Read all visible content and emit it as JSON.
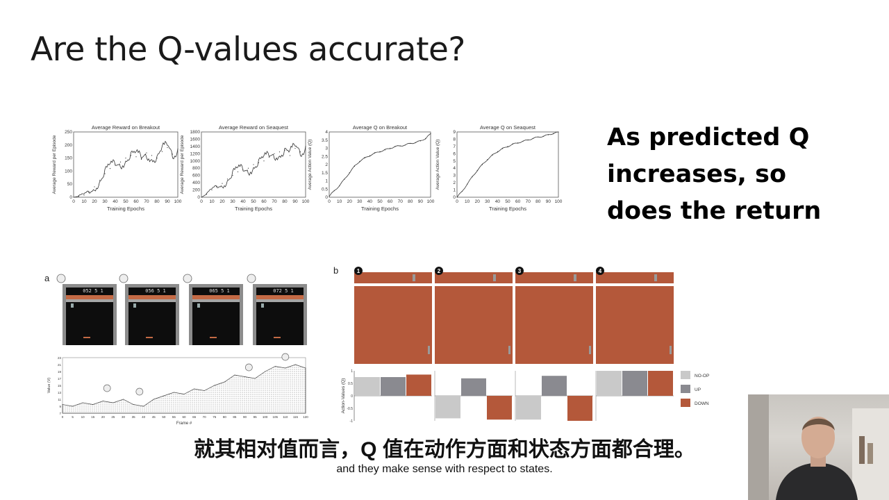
{
  "slide": {
    "title": "Are the Q-values accurate?",
    "side_note": [
      "As predicted Q",
      "increases, so",
      "does the return"
    ]
  },
  "chart_data": [
    {
      "type": "line",
      "title": "Average Reward on Breakout",
      "xlabel": "Training Epochs",
      "ylabel": "Average Reward per Episode",
      "xlim": [
        0,
        100
      ],
      "ylim": [
        0,
        250
      ],
      "xticks": [
        "0",
        "10",
        "20",
        "30",
        "40",
        "50",
        "60",
        "70",
        "80",
        "90",
        "100"
      ],
      "yticks": [
        "0",
        "50",
        "100",
        "150",
        "200",
        "250"
      ],
      "x": [
        0,
        5,
        10,
        15,
        20,
        25,
        30,
        35,
        40,
        45,
        50,
        55,
        60,
        65,
        70,
        75,
        80,
        85,
        90,
        95,
        100
      ],
      "y": [
        0,
        3,
        8,
        20,
        40,
        65,
        90,
        110,
        125,
        135,
        150,
        160,
        155,
        145,
        170,
        160,
        150,
        175,
        190,
        165,
        185
      ]
    },
    {
      "type": "line",
      "title": "Average Reward on Seaquest",
      "xlabel": "Training Epochs",
      "ylabel": "Average Reward per Episode",
      "xlim": [
        0,
        100
      ],
      "ylim": [
        0,
        1800
      ],
      "xticks": [
        "0",
        "10",
        "20",
        "30",
        "40",
        "50",
        "60",
        "70",
        "80",
        "90",
        "100"
      ],
      "yticks": [
        "0",
        "200",
        "400",
        "600",
        "800",
        "1000",
        "1200",
        "1400",
        "1600",
        "1800"
      ],
      "x": [
        0,
        5,
        10,
        15,
        20,
        25,
        30,
        35,
        40,
        45,
        50,
        55,
        60,
        65,
        70,
        75,
        80,
        85,
        90,
        95,
        100
      ],
      "y": [
        0,
        80,
        200,
        300,
        380,
        500,
        600,
        700,
        750,
        800,
        900,
        950,
        1000,
        1100,
        1200,
        1250,
        1300,
        1150,
        1350,
        1250,
        1400
      ]
    },
    {
      "type": "line",
      "title": "Average Q on Breakout",
      "xlabel": "Training Epochs",
      "ylabel": "Average Action Value (Q)",
      "xlim": [
        0,
        100
      ],
      "ylim": [
        0,
        4
      ],
      "xticks": [
        "0",
        "10",
        "20",
        "30",
        "40",
        "50",
        "60",
        "70",
        "80",
        "90",
        "100"
      ],
      "yticks": [
        "0",
        "0.5",
        "1",
        "1.5",
        "2",
        "2.5",
        "3",
        "3.5",
        "4"
      ],
      "x": [
        0,
        5,
        10,
        15,
        20,
        25,
        30,
        35,
        40,
        45,
        50,
        55,
        60,
        65,
        70,
        75,
        80,
        85,
        90,
        95,
        100
      ],
      "y": [
        0.05,
        0.4,
        0.7,
        1.1,
        1.5,
        1.9,
        2.2,
        2.4,
        2.55,
        2.7,
        2.8,
        2.9,
        3.0,
        3.1,
        3.15,
        3.2,
        3.3,
        3.35,
        3.45,
        3.6,
        3.9
      ]
    },
    {
      "type": "line",
      "title": "Average Q on Seaquest",
      "xlabel": "Training Epochs",
      "ylabel": "Average Action Value (Q)",
      "xlim": [
        0,
        100
      ],
      "ylim": [
        0,
        9
      ],
      "xticks": [
        "0",
        "10",
        "20",
        "30",
        "40",
        "50",
        "60",
        "70",
        "80",
        "90",
        "100"
      ],
      "yticks": [
        "0",
        "1",
        "2",
        "3",
        "4",
        "5",
        "6",
        "7",
        "8",
        "9"
      ],
      "x": [
        0,
        5,
        10,
        15,
        20,
        25,
        30,
        35,
        40,
        45,
        50,
        55,
        60,
        65,
        70,
        75,
        80,
        85,
        90,
        95,
        100
      ],
      "y": [
        0,
        0.8,
        1.8,
        2.8,
        3.7,
        4.5,
        5.2,
        5.8,
        6.3,
        6.7,
        7.0,
        7.3,
        7.5,
        7.7,
        7.9,
        8.1,
        8.3,
        8.4,
        8.6,
        8.8,
        9.0
      ]
    },
    {
      "type": "area",
      "panel": "a",
      "xlabel": "Frame #",
      "ylabel": "Value (V)",
      "xlim": [
        0,
        120
      ],
      "ylim": [
        7,
        23
      ],
      "xticks": [
        "0",
        "5",
        "10",
        "15",
        "20",
        "25",
        "30",
        "35",
        "40",
        "45",
        "50",
        "55",
        "60",
        "65",
        "70",
        "75",
        "80",
        "85",
        "90",
        "95",
        "100",
        "105",
        "110",
        "115",
        "120"
      ],
      "yticks": [
        "7",
        "9",
        "11",
        "13",
        "15",
        "17",
        "19",
        "21",
        "23"
      ],
      "x": [
        0,
        5,
        10,
        15,
        20,
        25,
        30,
        35,
        40,
        45,
        50,
        55,
        60,
        65,
        70,
        75,
        80,
        85,
        90,
        95,
        100,
        105,
        110,
        115,
        120
      ],
      "y": [
        9.5,
        9,
        10,
        9.5,
        10.5,
        10,
        11,
        9.5,
        9,
        11,
        12,
        13,
        12.5,
        14,
        13.5,
        15,
        16,
        18,
        17.5,
        17,
        19,
        20.5,
        20,
        21,
        20
      ],
      "scores": [
        "052 5 1",
        "056 5 1",
        "065 5 1",
        "072 5 1"
      ]
    },
    {
      "type": "bar",
      "panel": "b",
      "ylabel": "Action-Values (Q)",
      "ylim": [
        -1,
        1
      ],
      "yticks": [
        "1",
        "0.5",
        "0",
        "-0.5",
        "-1"
      ],
      "categories": [
        "1",
        "2",
        "3",
        "4"
      ],
      "legend": [
        "NO-OP",
        "UP",
        "DOWN"
      ],
      "colors": [
        "#c9c9c9",
        "#8a8a90",
        "#b4583a"
      ],
      "series": [
        {
          "name": "NO-OP",
          "values": [
            0.75,
            -0.9,
            -0.95,
            1.0
          ]
        },
        {
          "name": "UP",
          "values": [
            0.75,
            0.7,
            0.8,
            1.0
          ]
        },
        {
          "name": "DOWN",
          "values": [
            0.85,
            -0.95,
            -1.0,
            1.0
          ]
        }
      ]
    }
  ],
  "subtitles": {
    "chinese": "就其相对值而言，Q 值在动作方面和状态方面都合理。",
    "english": "and they make sense with respect to states."
  },
  "colors": {
    "pong_background": "#b4583a",
    "breakout_background": "#0d0d0d",
    "line": "#333333"
  }
}
